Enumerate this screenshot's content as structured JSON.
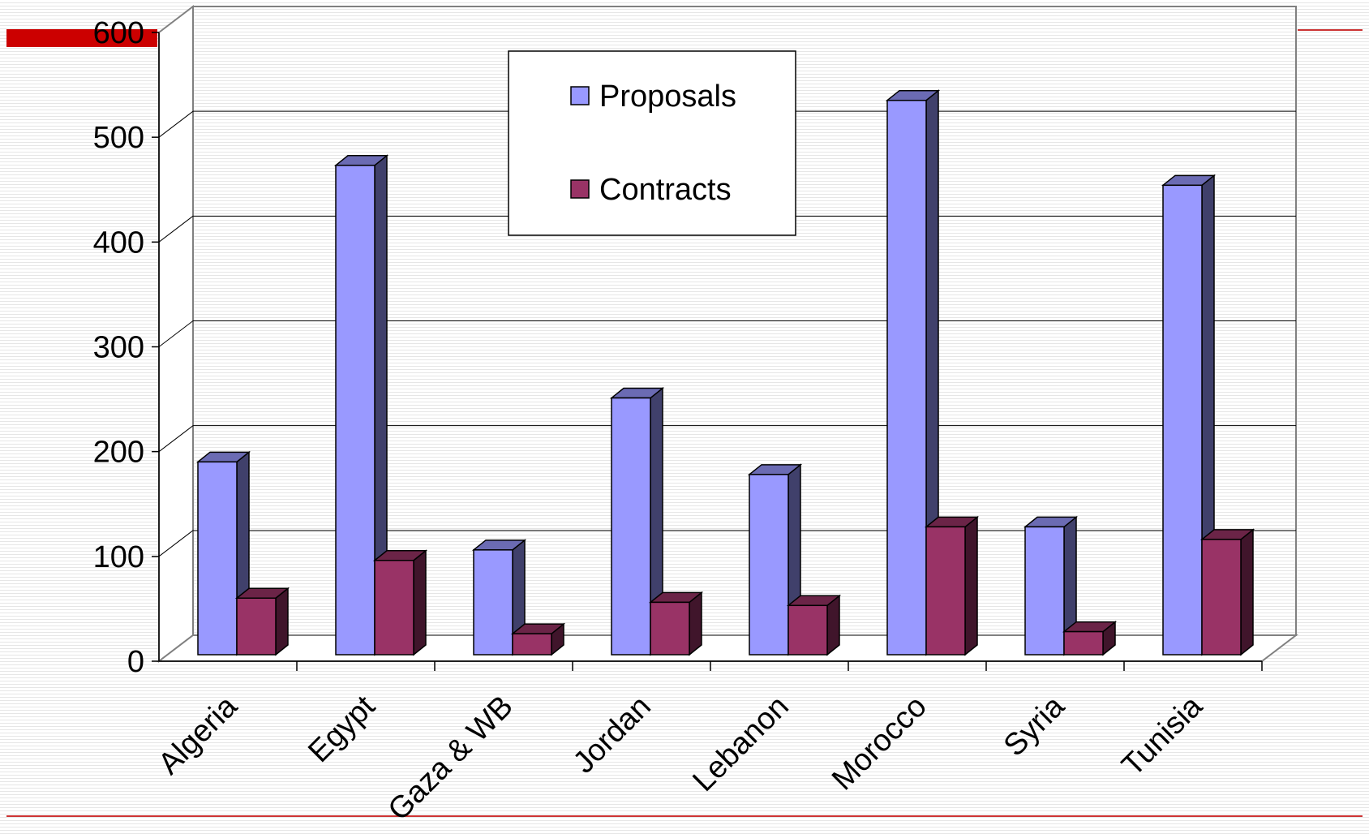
{
  "chart_data": {
    "type": "bar",
    "title": "",
    "xlabel": "",
    "ylabel": "",
    "categories": [
      "Algeria",
      "Egypt",
      "Gaza & WB",
      "Jordan",
      "Lebanon",
      "Morocco",
      "Syria",
      "Tunisia"
    ],
    "series": [
      {
        "name": "Proposals",
        "values": [
          184,
          467,
          100,
          245,
          172,
          529,
          122,
          448
        ],
        "color": "#9999ff"
      },
      {
        "name": "Contracts",
        "values": [
          54,
          90,
          20,
          50,
          47,
          122,
          22,
          110
        ],
        "color": "#993366"
      }
    ],
    "ylim": [
      0,
      600
    ],
    "yticks": [
      "0",
      "100",
      "200",
      "300",
      "400",
      "500",
      "600"
    ],
    "grid": true,
    "legend_position": "top-center",
    "style": "3d-clustered-column"
  },
  "decor": {
    "accent_bar_color": "#cc0000",
    "rule_color": "#cc3333"
  }
}
